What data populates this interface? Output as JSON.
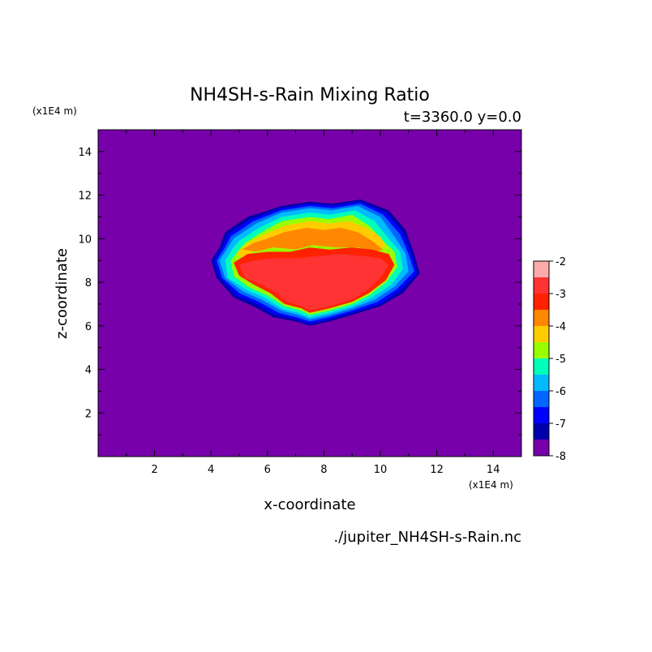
{
  "chart_data": {
    "type": "heatmap",
    "title": "NH4SH-s-Rain Mixing Ratio",
    "subtitle": "t=3360.0 y=0.0",
    "xlabel": "x-coordinate",
    "ylabel": "z-coordinate",
    "x_unit": "(x1E4 m)",
    "y_unit": "(x1E4 m)",
    "source_file": "./jupiter_NH4SH-s-Rain.nc",
    "xlim": [
      0,
      15
    ],
    "ylim": [
      0,
      15
    ],
    "x_ticks": [
      2,
      4,
      6,
      8,
      10,
      12,
      14
    ],
    "y_ticks": [
      2,
      4,
      6,
      8,
      10,
      12,
      14
    ],
    "background_value": -8,
    "field_description_levels": [
      {
        "level": -7.5,
        "poly": [
          [
            4.0,
            9.0
          ],
          [
            4.2,
            8.2
          ],
          [
            4.8,
            7.3
          ],
          [
            5.5,
            6.9
          ],
          [
            6.2,
            6.4
          ],
          [
            7.0,
            6.2
          ],
          [
            7.5,
            6.0
          ],
          [
            8.2,
            6.2
          ],
          [
            9.0,
            6.5
          ],
          [
            10.0,
            6.9
          ],
          [
            10.8,
            7.5
          ],
          [
            11.4,
            8.4
          ],
          [
            11.2,
            9.3
          ],
          [
            10.9,
            10.4
          ],
          [
            10.3,
            11.3
          ],
          [
            9.3,
            11.8
          ],
          [
            8.3,
            11.6
          ],
          [
            7.5,
            11.7
          ],
          [
            6.5,
            11.5
          ],
          [
            5.3,
            11.0
          ],
          [
            4.5,
            10.3
          ],
          [
            4.3,
            9.6
          ]
        ]
      },
      {
        "level": -7.0,
        "poly": [
          [
            4.1,
            9.0
          ],
          [
            4.3,
            8.2
          ],
          [
            4.9,
            7.4
          ],
          [
            5.6,
            7.0
          ],
          [
            6.3,
            6.5
          ],
          [
            7.0,
            6.3
          ],
          [
            7.5,
            6.1
          ],
          [
            8.2,
            6.3
          ],
          [
            9.0,
            6.6
          ],
          [
            10.0,
            7.0
          ],
          [
            10.7,
            7.6
          ],
          [
            11.3,
            8.4
          ],
          [
            11.1,
            9.3
          ],
          [
            10.8,
            10.3
          ],
          [
            10.2,
            11.2
          ],
          [
            9.3,
            11.7
          ],
          [
            8.3,
            11.5
          ],
          [
            7.5,
            11.6
          ],
          [
            6.5,
            11.4
          ],
          [
            5.4,
            10.9
          ],
          [
            4.6,
            10.2
          ],
          [
            4.4,
            9.6
          ]
        ]
      },
      {
        "level": -6.5,
        "poly": [
          [
            4.2,
            9.0
          ],
          [
            4.4,
            8.2
          ],
          [
            5.0,
            7.5
          ],
          [
            5.7,
            7.1
          ],
          [
            6.4,
            6.6
          ],
          [
            7.0,
            6.4
          ],
          [
            7.5,
            6.2
          ],
          [
            8.2,
            6.4
          ],
          [
            9.0,
            6.7
          ],
          [
            9.9,
            7.1
          ],
          [
            10.6,
            7.7
          ],
          [
            11.2,
            8.5
          ],
          [
            11.0,
            9.3
          ],
          [
            10.7,
            10.2
          ],
          [
            10.1,
            11.1
          ],
          [
            9.3,
            11.6
          ],
          [
            8.3,
            11.4
          ],
          [
            7.5,
            11.5
          ],
          [
            6.5,
            11.3
          ],
          [
            5.5,
            10.8
          ],
          [
            4.7,
            10.1
          ],
          [
            4.5,
            9.6
          ]
        ]
      },
      {
        "level": -6.0,
        "poly": [
          [
            4.3,
            9.0
          ],
          [
            4.5,
            8.2
          ],
          [
            5.1,
            7.6
          ],
          [
            5.8,
            7.2
          ],
          [
            6.5,
            6.7
          ],
          [
            7.1,
            6.5
          ],
          [
            7.5,
            6.3
          ],
          [
            8.2,
            6.5
          ],
          [
            9.0,
            6.8
          ],
          [
            9.8,
            7.2
          ],
          [
            10.5,
            7.8
          ],
          [
            11.0,
            8.5
          ],
          [
            10.9,
            9.3
          ],
          [
            10.5,
            10.1
          ],
          [
            10.0,
            11.0
          ],
          [
            9.2,
            11.5
          ],
          [
            8.3,
            11.3
          ],
          [
            7.5,
            11.4
          ],
          [
            6.5,
            11.2
          ],
          [
            5.6,
            10.7
          ],
          [
            4.8,
            10.0
          ],
          [
            4.6,
            9.6
          ]
        ]
      },
      {
        "level": -5.5,
        "poly": [
          [
            4.5,
            9.0
          ],
          [
            4.6,
            8.2
          ],
          [
            5.2,
            7.7
          ],
          [
            5.9,
            7.3
          ],
          [
            6.5,
            6.8
          ],
          [
            7.1,
            6.6
          ],
          [
            7.5,
            6.4
          ],
          [
            8.2,
            6.6
          ],
          [
            9.0,
            6.9
          ],
          [
            9.7,
            7.3
          ],
          [
            10.4,
            7.9
          ],
          [
            10.8,
            8.6
          ],
          [
            10.7,
            9.4
          ],
          [
            10.3,
            10.0
          ],
          [
            9.8,
            10.8
          ],
          [
            9.1,
            11.3
          ],
          [
            8.2,
            11.1
          ],
          [
            7.5,
            11.2
          ],
          [
            6.5,
            11.0
          ],
          [
            5.7,
            10.5
          ],
          [
            5.0,
            9.9
          ],
          [
            4.8,
            9.6
          ]
        ]
      },
      {
        "level": -5.0,
        "poly": [
          [
            4.7,
            9.0
          ],
          [
            4.8,
            8.3
          ],
          [
            5.3,
            7.8
          ],
          [
            6.0,
            7.4
          ],
          [
            6.6,
            6.9
          ],
          [
            7.2,
            6.7
          ],
          [
            7.5,
            6.5
          ],
          [
            8.2,
            6.7
          ],
          [
            9.0,
            7.0
          ],
          [
            9.6,
            7.4
          ],
          [
            10.2,
            8.0
          ],
          [
            10.6,
            8.7
          ],
          [
            10.5,
            9.4
          ],
          [
            10.1,
            9.9
          ],
          [
            9.6,
            10.6
          ],
          [
            9.0,
            11.1
          ],
          [
            8.2,
            10.9
          ],
          [
            7.5,
            11.0
          ],
          [
            6.5,
            10.8
          ],
          [
            5.8,
            10.3
          ],
          [
            5.2,
            9.8
          ],
          [
            5.0,
            9.5
          ]
        ]
      },
      {
        "level": -4.5,
        "poly": [
          [
            4.9,
            9.3
          ],
          [
            5.2,
            9.0
          ],
          [
            5.6,
            9.6
          ],
          [
            6.3,
            9.8
          ],
          [
            7.0,
            9.7
          ],
          [
            7.6,
            9.9
          ],
          [
            8.4,
            9.8
          ],
          [
            9.2,
            9.8
          ],
          [
            9.8,
            9.6
          ],
          [
            10.2,
            9.6
          ],
          [
            10.0,
            10.1
          ],
          [
            9.5,
            10.5
          ],
          [
            8.9,
            10.8
          ],
          [
            8.2,
            10.7
          ],
          [
            7.5,
            10.8
          ],
          [
            6.6,
            10.6
          ],
          [
            5.9,
            10.2
          ],
          [
            5.3,
            9.8
          ]
        ]
      },
      {
        "level": -4.0,
        "poly": [
          [
            5.1,
            9.5
          ],
          [
            5.6,
            9.4
          ],
          [
            6.2,
            9.6
          ],
          [
            7.0,
            9.5
          ],
          [
            7.6,
            9.7
          ],
          [
            8.4,
            9.6
          ],
          [
            9.2,
            9.6
          ],
          [
            9.8,
            9.4
          ],
          [
            10.1,
            9.5
          ],
          [
            9.7,
            9.9
          ],
          [
            9.2,
            10.3
          ],
          [
            8.6,
            10.5
          ],
          [
            8.0,
            10.4
          ],
          [
            7.4,
            10.5
          ],
          [
            6.6,
            10.3
          ],
          [
            6.0,
            10.0
          ],
          [
            5.5,
            9.8
          ]
        ]
      },
      {
        "level": -3.5,
        "poly": [
          [
            4.8,
            8.9
          ],
          [
            5.0,
            8.3
          ],
          [
            5.5,
            7.9
          ],
          [
            6.1,
            7.5
          ],
          [
            6.6,
            7.0
          ],
          [
            7.2,
            6.8
          ],
          [
            7.5,
            6.6
          ],
          [
            8.2,
            6.8
          ],
          [
            9.0,
            7.1
          ],
          [
            9.6,
            7.5
          ],
          [
            10.2,
            8.1
          ],
          [
            10.5,
            8.8
          ],
          [
            10.3,
            9.3
          ],
          [
            9.7,
            9.5
          ],
          [
            9.0,
            9.6
          ],
          [
            8.2,
            9.5
          ],
          [
            7.5,
            9.6
          ],
          [
            6.8,
            9.4
          ],
          [
            6.0,
            9.4
          ],
          [
            5.3,
            9.3
          ]
        ]
      },
      {
        "level": -3.0,
        "poly": [
          [
            5.0,
            8.8
          ],
          [
            5.2,
            8.2
          ],
          [
            5.6,
            8.0
          ],
          [
            6.2,
            7.6
          ],
          [
            6.7,
            7.1
          ],
          [
            7.2,
            6.9
          ],
          [
            7.5,
            6.7
          ],
          [
            8.2,
            6.9
          ],
          [
            9.0,
            7.2
          ],
          [
            9.5,
            7.6
          ],
          [
            10.0,
            8.2
          ],
          [
            10.3,
            8.8
          ],
          [
            10.0,
            9.1
          ],
          [
            9.4,
            9.2
          ],
          [
            8.6,
            9.3
          ],
          [
            7.8,
            9.2
          ],
          [
            7.0,
            9.1
          ],
          [
            6.2,
            9.1
          ],
          [
            5.5,
            9.0
          ]
        ]
      }
    ],
    "colorbar": {
      "min": -8,
      "max": -2,
      "tick_labels": [
        "-2",
        "-3",
        "-4",
        "-5",
        "-6",
        "-7",
        "-8"
      ],
      "colors": [
        "#ffaaaa",
        "#ff3333",
        "#ff2200",
        "#ff8800",
        "#ffcc00",
        "#99ff00",
        "#00ffbb",
        "#00bbff",
        "#0066ff",
        "#0000ff",
        "#0000aa",
        "#7700aa"
      ]
    },
    "background_color": "#7700aa"
  }
}
